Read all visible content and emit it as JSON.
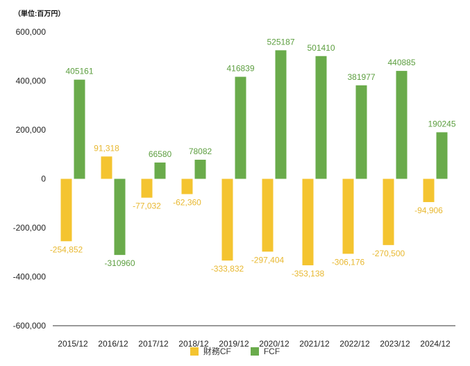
{
  "chart_data": {
    "type": "bar",
    "title": "",
    "unit_note": "（単位:百万円）",
    "categories": [
      "2015/12",
      "2016/12",
      "2017/12",
      "2018/12",
      "2019/12",
      "2020/12",
      "2021/12",
      "2022/12",
      "2023/12",
      "2024/12"
    ],
    "series": [
      {
        "name": "財務CF",
        "color": "#F4C430",
        "label_color": "#E8B830",
        "values": [
          -254852,
          91318,
          -77032,
          -62360,
          -333832,
          -297404,
          -353138,
          -306176,
          -270500,
          -94906
        ],
        "labels": [
          "-254,852",
          "91,318",
          "-77,032",
          "-62,360",
          "-333,832",
          "-297,404",
          "-353,138",
          "-306,176",
          "-270,500",
          "-94,906"
        ]
      },
      {
        "name": "FCF",
        "color": "#6AAB4B",
        "label_color": "#5C9E3F",
        "values": [
          405161,
          -310960,
          66580,
          78082,
          416839,
          525187,
          501410,
          381977,
          440885,
          190245
        ],
        "labels": [
          "405161",
          "-310960",
          "66580",
          "78082",
          "416839",
          "525187",
          "501410",
          "381977",
          "440885",
          "190245"
        ]
      }
    ],
    "ylim": [
      -600000,
      600000
    ],
    "yticks": [
      600000,
      400000,
      200000,
      0,
      -200000,
      -400000,
      -600000
    ],
    "ytick_labels": [
      "600,000",
      "400,000",
      "200,000",
      "0",
      "-200,000",
      "-400,000",
      "-600,000"
    ],
    "xlabel": "",
    "ylabel": "",
    "grid": false,
    "legend": "bottom"
  }
}
